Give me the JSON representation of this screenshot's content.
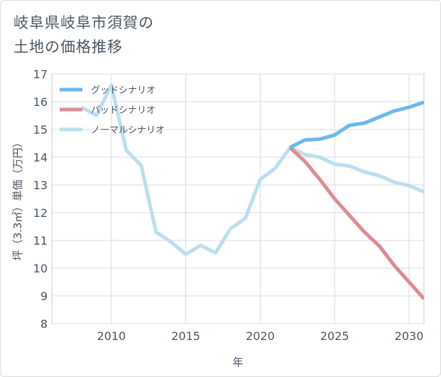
{
  "title_lines": [
    "岐阜県岐阜市須賀の",
    "土地の価格推移"
  ],
  "chart_data": {
    "type": "line",
    "xlabel": "年",
    "ylabel": "坪（3.3㎡）単価（万円）",
    "xlim": [
      2006,
      2031
    ],
    "ylim": [
      8,
      17
    ],
    "xticks": [
      2010,
      2015,
      2020,
      2025,
      2030
    ],
    "yticks": [
      8,
      9,
      10,
      11,
      12,
      13,
      14,
      15,
      16,
      17
    ],
    "grid": true,
    "legend_position": "top-left",
    "series": [
      {
        "name": "グッドシナリオ",
        "color": "#6cb8ec",
        "points": [
          [
            2022,
            14.35
          ],
          [
            2023,
            14.62
          ],
          [
            2024,
            14.65
          ],
          [
            2025,
            14.8
          ],
          [
            2026,
            15.15
          ],
          [
            2027,
            15.23
          ],
          [
            2028,
            15.45
          ],
          [
            2029,
            15.67
          ],
          [
            2030,
            15.8
          ],
          [
            2031,
            15.98
          ]
        ]
      },
      {
        "name": "バッドシナリオ",
        "color": "#dc8c93",
        "points": [
          [
            2022,
            14.35
          ],
          [
            2023,
            13.85
          ],
          [
            2024,
            13.2
          ],
          [
            2025,
            12.5
          ],
          [
            2026,
            11.9
          ],
          [
            2027,
            11.3
          ],
          [
            2028,
            10.8
          ],
          [
            2029,
            10.1
          ],
          [
            2030,
            9.5
          ],
          [
            2031,
            8.9
          ]
        ]
      },
      {
        "name": "ノーマルシナリオ",
        "color": "#bcdfee",
        "points": [
          [
            2008,
            15.8
          ],
          [
            2009,
            15.5
          ],
          [
            2010,
            16.6
          ],
          [
            2011,
            14.25
          ],
          [
            2012,
            13.7
          ],
          [
            2013,
            11.3
          ],
          [
            2014,
            10.95
          ],
          [
            2015,
            10.5
          ],
          [
            2016,
            10.82
          ],
          [
            2017,
            10.55
          ],
          [
            2018,
            11.42
          ],
          [
            2019,
            11.8
          ],
          [
            2020,
            13.2
          ],
          [
            2021,
            13.6
          ],
          [
            2022,
            14.35
          ],
          [
            2023,
            14.1
          ],
          [
            2024,
            14.0
          ],
          [
            2025,
            13.75
          ],
          [
            2026,
            13.68
          ],
          [
            2027,
            13.47
          ],
          [
            2028,
            13.33
          ],
          [
            2029,
            13.1
          ],
          [
            2030,
            12.98
          ],
          [
            2031,
            12.75
          ]
        ]
      }
    ]
  }
}
